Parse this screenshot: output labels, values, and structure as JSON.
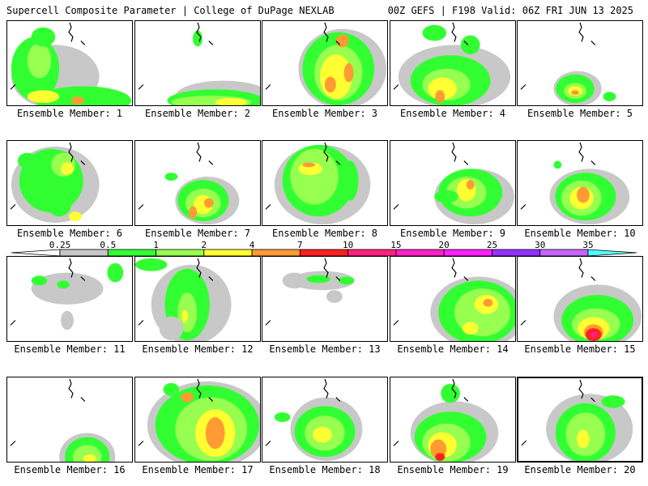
{
  "header": {
    "left": "Supercell Composite Parameter | College of DuPage NEXLAB",
    "right": "00Z GEFS | F198 Valid: 06Z FRI JUN 13 2025"
  },
  "legend": {
    "ticks": [
      "0.25",
      "0.5",
      "1",
      "2",
      "4",
      "7",
      "10",
      "15",
      "20",
      "25",
      "30",
      "35"
    ],
    "colors": [
      "#c8c8c8",
      "#32ff32",
      "#96ff50",
      "#ffff32",
      "#ff9b32",
      "#ff2020",
      "#ff2080",
      "#ff20c8",
      "#ff20ff",
      "#9632ff",
      "#c864ff",
      "#50ffff"
    ]
  },
  "members": [
    {
      "label": "Ensemble Member: 1"
    },
    {
      "label": "Ensemble Member: 2"
    },
    {
      "label": "Ensemble Member: 3"
    },
    {
      "label": "Ensemble Member: 4"
    },
    {
      "label": "Ensemble Member: 5"
    },
    {
      "label": "Ensemble Member: 6"
    },
    {
      "label": "Ensemble Member: 7"
    },
    {
      "label": "Ensemble Member: 8"
    },
    {
      "label": "Ensemble Member: 9"
    },
    {
      "label": "Ensemble Member: 10"
    },
    {
      "label": "Ensemble Member: 11"
    },
    {
      "label": "Ensemble Member: 12"
    },
    {
      "label": "Ensemble Member: 13"
    },
    {
      "label": "Ensemble Member: 14"
    },
    {
      "label": "Ensemble Member: 15"
    },
    {
      "label": "Ensemble Member: 16"
    },
    {
      "label": "Ensemble Member: 17"
    },
    {
      "label": "Ensemble Member: 18"
    },
    {
      "label": "Ensemble Member: 19"
    },
    {
      "label": "Ensemble Member: 20",
      "selected": true
    }
  ]
}
